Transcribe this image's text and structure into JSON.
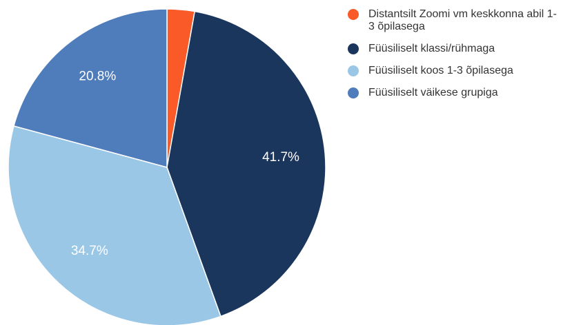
{
  "chart_data": {
    "type": "pie",
    "categories": [
      "Distantsilt Zoomi vm keskkonna abil 1-3 õpilasega",
      "Füüsiliselt klassi/rühmaga",
      "Füüsiliselt koos 1-3 õpilasega",
      "Füüsiliselt väikese grupiga"
    ],
    "values": [
      2.8,
      41.7,
      34.7,
      20.8
    ],
    "value_labels": [
      null,
      "41.7%",
      "34.7%",
      "20.8%"
    ],
    "colors": [
      "#fa5a28",
      "#1b365d",
      "#9bc7e6",
      "#4f7cbb"
    ],
    "legend": "right"
  }
}
